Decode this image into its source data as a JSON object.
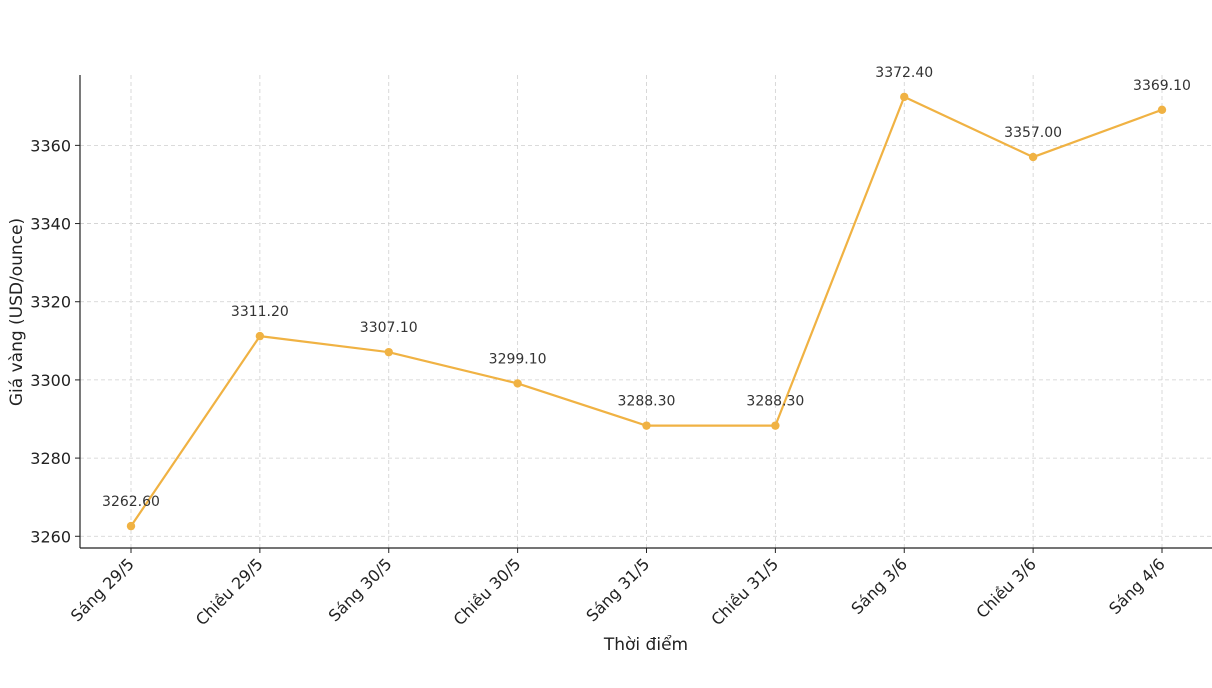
{
  "chart_data": {
    "type": "line",
    "title": "",
    "xlabel": "Thời điểm",
    "ylabel": "Giá vàng (USD/ounce)",
    "categories": [
      "Sáng 29/5",
      "Chiều 29/5",
      "Sáng 30/5",
      "Chiều 30/5",
      "Sáng 31/5",
      "Chiều 31/5",
      "Sáng 3/6",
      "Chiều 3/6",
      "Sáng 4/6"
    ],
    "series": [
      {
        "values": [
          3262.6,
          3311.2,
          3307.1,
          3299.1,
          3288.3,
          3288.3,
          3372.4,
          3357.0,
          3369.1
        ],
        "labels": [
          "3262.60",
          "3311.20",
          "3307.10",
          "3299.10",
          "3288.30",
          "3288.30",
          "3372.40",
          "3357.00",
          "3369.10"
        ],
        "color": "#f0b243"
      }
    ],
    "yticks": [
      3260,
      3280,
      3300,
      3320,
      3340,
      3360
    ],
    "ylim": [
      3257,
      3378
    ],
    "grid": true,
    "legend": "none"
  }
}
